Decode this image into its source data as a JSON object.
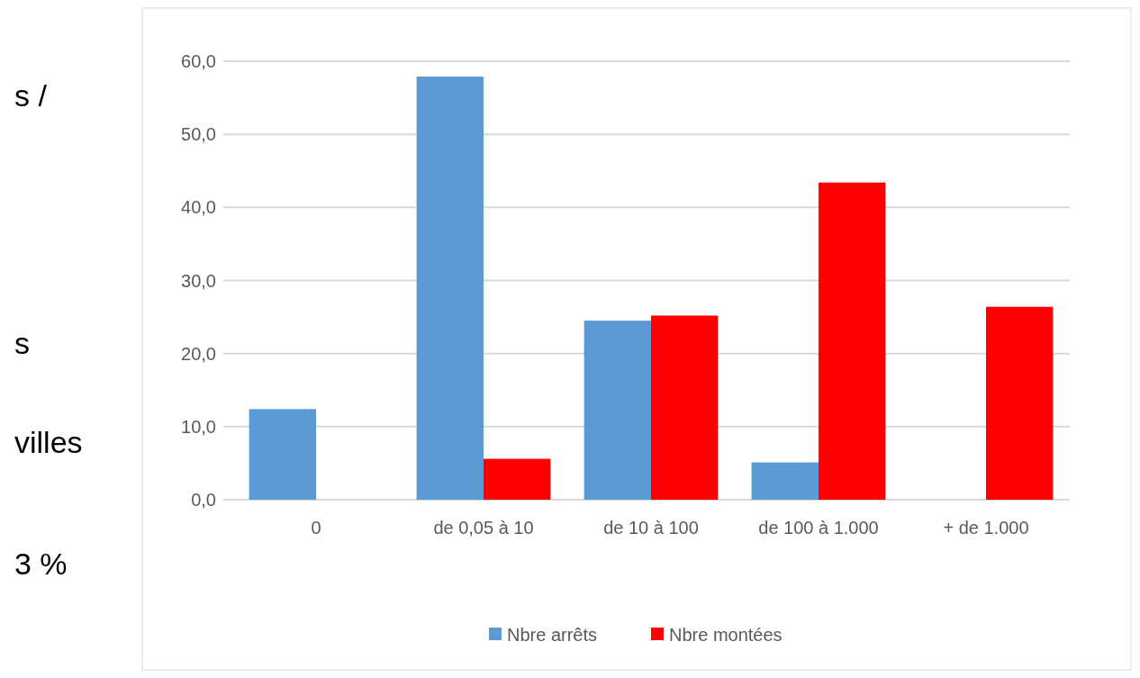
{
  "chart_data": {
    "type": "bar",
    "categories": [
      "0",
      "de 0,05 à 10",
      "de 10 à 100",
      "de 100 à 1.000",
      "+ de  1.000"
    ],
    "series": [
      {
        "name": "Nbre arrêts",
        "color": "#5b9bd5",
        "values": [
          12.4,
          57.9,
          24.5,
          5.1,
          0
        ]
      },
      {
        "name": "Nbre montées",
        "color": "#ff0000",
        "values": [
          0,
          5.6,
          25.2,
          43.4,
          26.4
        ]
      }
    ],
    "ylim": [
      0,
      60
    ],
    "yticks": [
      {
        "value": 0,
        "label": "0,0"
      },
      {
        "value": 10,
        "label": "10,0"
      },
      {
        "value": 20,
        "label": "20,0"
      },
      {
        "value": 30,
        "label": "30,0"
      },
      {
        "value": 40,
        "label": "40,0"
      },
      {
        "value": 50,
        "label": "50,0"
      },
      {
        "value": 60,
        "label": "60,0"
      }
    ],
    "grid": "y",
    "legend": "bottom",
    "annotations": [
      "s /",
      "s",
      "villes",
      "3 %"
    ]
  }
}
